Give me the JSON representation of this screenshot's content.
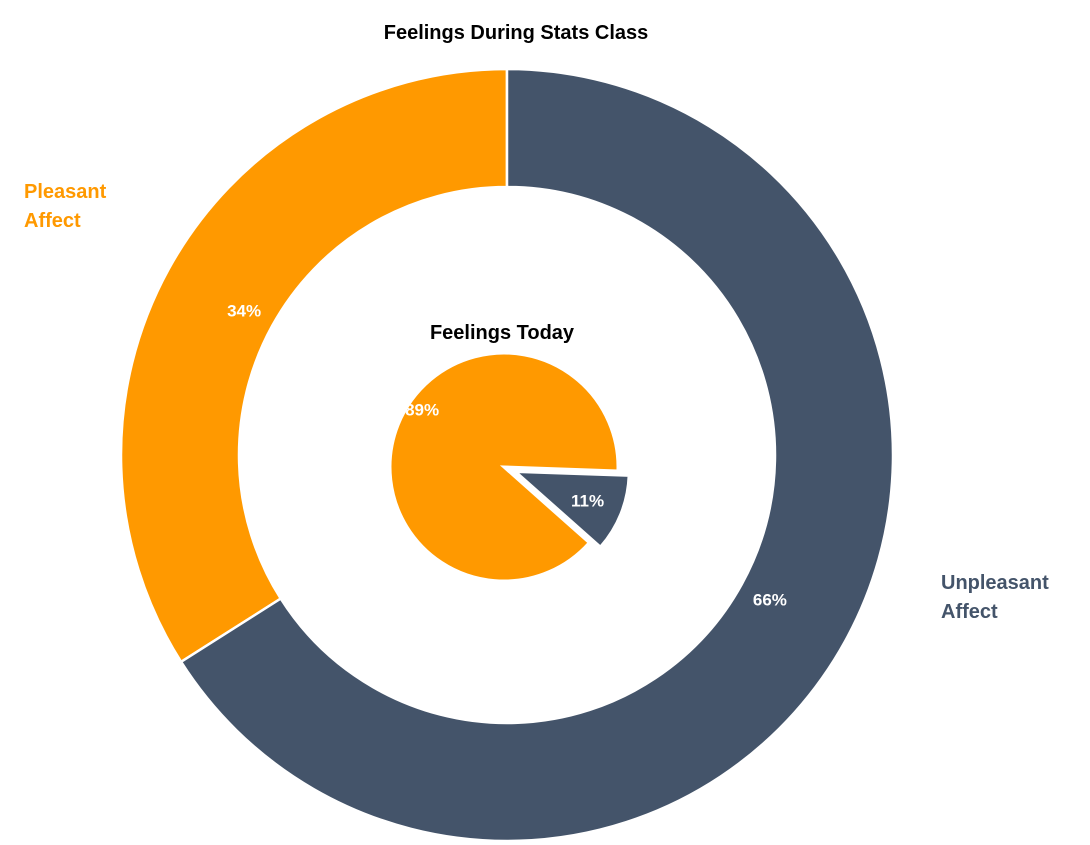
{
  "chart_data": [
    {
      "type": "donut",
      "title": "Feelings During Stats Class",
      "categories": [
        "Pleasant Affect",
        "Unpleasant Affect"
      ],
      "category_lines": [
        [
          "Pleasant",
          "Affect"
        ],
        [
          "Unpleasant",
          "Affect"
        ]
      ],
      "values": [
        34,
        66
      ],
      "labels": [
        "34%",
        "66%"
      ],
      "colors": [
        "#FF9900",
        "#44546A"
      ]
    },
    {
      "type": "pie",
      "title": "Feelings Today",
      "categories": [
        "Pleasant Affect",
        "Unpleasant Affect"
      ],
      "values": [
        89,
        11
      ],
      "labels": [
        "89%",
        "11%"
      ],
      "colors": [
        "#FF9900",
        "#44546A"
      ],
      "exploded": [
        false,
        true
      ]
    }
  ]
}
